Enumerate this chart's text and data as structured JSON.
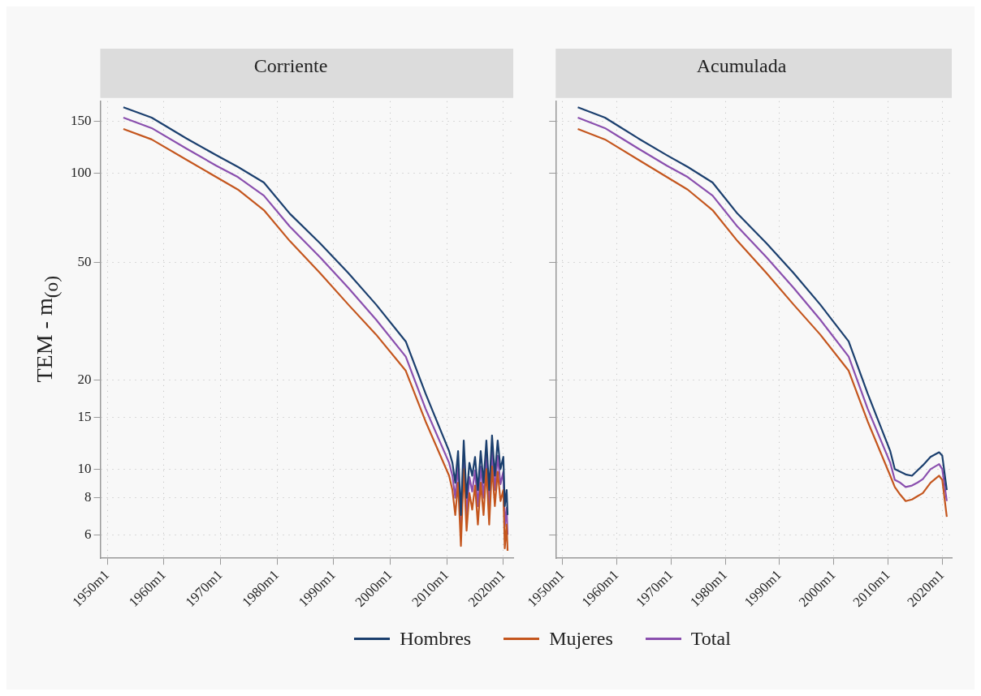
{
  "chart_data": [
    {
      "type": "line",
      "title": "Corriente",
      "ylabel": "TEM - m$_{(o)}$",
      "log": "y",
      "grid": true,
      "legend": "bottom",
      "xlim": [
        "1948-10",
        "2021-10"
      ],
      "ylim": [
        5,
        175
      ],
      "xticks": [
        {
          "value": "1950-01",
          "label": "1950m1"
        },
        {
          "value": "1960-01",
          "label": "1960m1"
        },
        {
          "value": "1970-01",
          "label": "1970m1"
        },
        {
          "value": "1980-01",
          "label": "1980m1"
        },
        {
          "value": "1990-01",
          "label": "1990m1"
        },
        {
          "value": "2000-01",
          "label": "2000m1"
        },
        {
          "value": "2010-01",
          "label": "2010m1"
        },
        {
          "value": "2020-01",
          "label": "2020m1"
        }
      ],
      "yticks": [
        6,
        8,
        10,
        15,
        20,
        50,
        100,
        150
      ],
      "series": [
        {
          "name": "Hombres",
          "color": "#1b3f6e",
          "x": [
            "1952-11",
            "1957-11",
            "1964-01",
            "1969-04",
            "1973-02",
            "1977-09",
            "1982-04",
            "1987-08",
            "1992-08",
            "1997-07",
            "2002-10",
            "2006-04",
            "2010-06",
            "2011-01",
            "2011-07",
            "2012-01",
            "2012-07",
            "2013-01",
            "2013-07",
            "2014-01",
            "2014-07",
            "2015-01",
            "2015-07",
            "2016-01",
            "2016-07",
            "2017-01",
            "2017-07",
            "2018-01",
            "2018-07",
            "2019-01",
            "2019-07",
            "2020-01",
            "2020-04",
            "2020-08",
            "2020-10"
          ],
          "values": [
            167,
            154,
            131,
            115,
            105,
            93,
            73,
            58,
            46,
            36,
            27,
            18,
            11.5,
            10.5,
            9.0,
            11.5,
            7.0,
            12.5,
            8.0,
            10.5,
            9.5,
            11.0,
            8.5,
            11.5,
            9.0,
            12.5,
            8.5,
            13.0,
            9.5,
            12.5,
            10.0,
            11.0,
            7.5,
            8.5,
            7.0
          ]
        },
        {
          "name": "Mujeres",
          "color": "#c4561e",
          "x": [
            "1952-11",
            "1957-11",
            "1964-01",
            "1969-04",
            "1973-02",
            "1977-09",
            "1982-04",
            "1987-08",
            "1992-08",
            "1997-07",
            "2002-10",
            "2006-04",
            "2010-06",
            "2011-01",
            "2011-07",
            "2012-01",
            "2012-07",
            "2013-01",
            "2013-07",
            "2014-01",
            "2014-07",
            "2015-01",
            "2015-07",
            "2016-01",
            "2016-07",
            "2017-01",
            "2017-07",
            "2018-01",
            "2018-07",
            "2019-01",
            "2019-07",
            "2020-01",
            "2020-04",
            "2020-08",
            "2020-10"
          ],
          "values": [
            141,
            130,
            111,
            97,
            88,
            75,
            59,
            46,
            36,
            28.5,
            21.5,
            14.5,
            9.5,
            8.5,
            7.0,
            9.0,
            5.5,
            10.0,
            6.2,
            8.3,
            7.3,
            8.8,
            6.5,
            9.0,
            7.0,
            10.0,
            6.5,
            10.2,
            7.5,
            9.8,
            7.8,
            8.5,
            5.4,
            6.5,
            5.3
          ]
        },
        {
          "name": "Total",
          "color": "#8a4fae",
          "x": [
            "1952-11",
            "1957-11",
            "1964-01",
            "1969-04",
            "1973-02",
            "1977-09",
            "1982-04",
            "1987-08",
            "1992-08",
            "1997-07",
            "2002-10",
            "2006-04",
            "2010-06",
            "2011-01",
            "2011-07",
            "2012-01",
            "2012-07",
            "2013-01",
            "2013-07",
            "2014-01",
            "2014-07",
            "2015-01",
            "2015-07",
            "2016-01",
            "2016-07",
            "2017-01",
            "2017-07",
            "2018-01",
            "2018-07",
            "2019-01",
            "2019-07",
            "2020-01",
            "2020-04",
            "2020-08",
            "2020-10"
          ],
          "values": [
            154,
            142,
            121,
            106,
            97,
            84,
            66,
            52,
            41,
            32,
            24,
            16,
            10.5,
            9.5,
            8.0,
            10.3,
            6.2,
            11.2,
            7.0,
            9.4,
            8.4,
            9.9,
            7.5,
            10.2,
            8.0,
            11.2,
            7.5,
            11.5,
            8.5,
            11.1,
            8.9,
            9.8,
            6.4,
            7.4,
            6.0
          ]
        }
      ]
    },
    {
      "type": "line",
      "title": "Acumulada",
      "log": "y",
      "grid": true,
      "tick_labels": "x",
      "xlim": [
        "1948-10",
        "2021-10"
      ],
      "ylim": [
        5,
        175
      ],
      "xticks": [
        {
          "value": "1950-01",
          "label": "1950m1"
        },
        {
          "value": "1960-01",
          "label": "1960m1"
        },
        {
          "value": "1970-01",
          "label": "1970m1"
        },
        {
          "value": "1980-01",
          "label": "1980m1"
        },
        {
          "value": "1990-01",
          "label": "1990m1"
        },
        {
          "value": "2000-01",
          "label": "2000m1"
        },
        {
          "value": "2010-01",
          "label": "2010m1"
        },
        {
          "value": "2020-01",
          "label": "2020m1"
        }
      ],
      "yticks": [
        6,
        8,
        10,
        15,
        20,
        50,
        100,
        150
      ],
      "series": [
        {
          "color": "#1b3f6e",
          "x": [
            "1952-11",
            "1957-11",
            "1964-01",
            "1969-04",
            "1973-02",
            "1977-09",
            "1982-04",
            "1987-08",
            "1992-08",
            "1997-07",
            "2002-10",
            "2006-04",
            "2010-06",
            "2011-04",
            "2012-04",
            "2013-04",
            "2014-06",
            "2015-06",
            "2016-06",
            "2017-11",
            "2019-06",
            "2020-01",
            "2020-11"
          ],
          "values": [
            167,
            154,
            131,
            115,
            105,
            93,
            73,
            58,
            46,
            36,
            27,
            18,
            11.5,
            10.0,
            9.8,
            9.6,
            9.5,
            9.9,
            10.3,
            11.0,
            11.4,
            11.1,
            8.5
          ]
        },
        {
          "color": "#c4561e",
          "x": [
            "1952-11",
            "1957-11",
            "1964-01",
            "1969-04",
            "1973-02",
            "1977-09",
            "1982-04",
            "1987-08",
            "1992-08",
            "1997-07",
            "2002-10",
            "2006-04",
            "2010-06",
            "2011-04",
            "2012-04",
            "2013-04",
            "2014-06",
            "2015-06",
            "2016-06",
            "2017-11",
            "2019-06",
            "2020-01",
            "2020-11"
          ],
          "values": [
            141,
            130,
            111,
            97,
            88,
            75,
            59,
            46,
            36,
            28.5,
            21.5,
            14.5,
            9.5,
            8.7,
            8.2,
            7.8,
            7.9,
            8.1,
            8.3,
            9.0,
            9.5,
            9.2,
            6.9
          ]
        },
        {
          "color": "#8a4fae",
          "x": [
            "1952-11",
            "1957-11",
            "1964-01",
            "1969-04",
            "1973-02",
            "1977-09",
            "1982-04",
            "1987-08",
            "1992-08",
            "1997-07",
            "2002-10",
            "2006-04",
            "2010-06",
            "2011-04",
            "2012-04",
            "2013-04",
            "2014-06",
            "2015-06",
            "2016-06",
            "2017-11",
            "2019-06",
            "2020-01",
            "2020-11"
          ],
          "values": [
            154,
            142,
            121,
            106,
            97,
            84,
            66,
            52,
            41,
            32,
            24,
            16,
            10.5,
            9.2,
            9.0,
            8.7,
            8.8,
            9.0,
            9.25,
            10.0,
            10.4,
            10.0,
            7.8
          ]
        }
      ]
    }
  ]
}
